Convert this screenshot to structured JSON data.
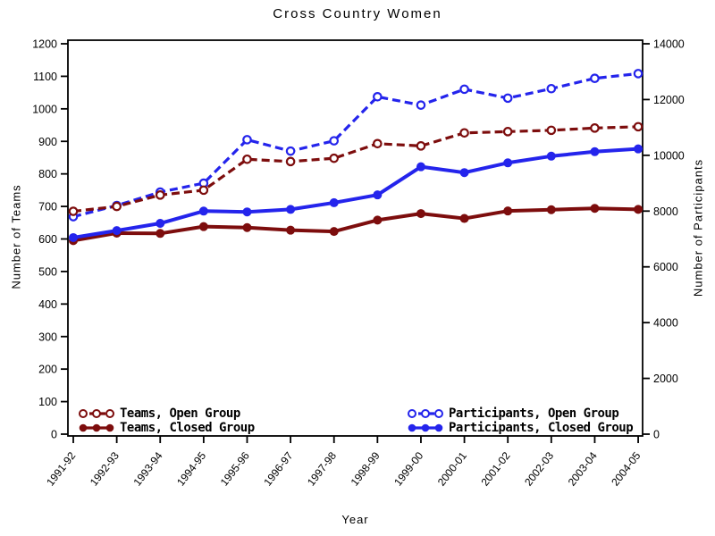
{
  "page": {
    "background": "#ffffff"
  },
  "title": "Cross Country Women",
  "chart_data": {
    "type": "line",
    "title": "Cross Country Women",
    "xlabel": "Year",
    "ylabel_left": "Number of Teams",
    "ylabel_right": "Number of Participants",
    "grid": false,
    "legend_position": "inside-bottom",
    "x_categories": [
      "1991-92",
      "1992-93",
      "1993-94",
      "1994-95",
      "1995-96",
      "1996-97",
      "1997-98",
      "1998-99",
      "1999-00",
      "2000-01",
      "2001-02",
      "2002-03",
      "2003-04",
      "2004-05"
    ],
    "left_axis": {
      "label": "Number of Teams",
      "min": 0,
      "max": 1200,
      "step": 100,
      "ticks": [
        "0",
        "100",
        "200",
        "300",
        "400",
        "500",
        "600",
        "700",
        "800",
        "900",
        "1000",
        "1100",
        "1200"
      ]
    },
    "right_axis": {
      "label": "Number of Participants",
      "min": 0,
      "max": 14000,
      "step": 2000,
      "ticks": [
        "0",
        "2000",
        "4000",
        "6000",
        "8000",
        "10000",
        "12000",
        "14000"
      ]
    },
    "series": [
      {
        "name": "Teams, Open Group",
        "axis": "left",
        "color": "#7D0D0D",
        "line_style": "dashed",
        "marker": "open-circle",
        "values": [
          685,
          700,
          735,
          750,
          845,
          838,
          848,
          893,
          886,
          926,
          930,
          934,
          941,
          945
        ]
      },
      {
        "name": "Teams, Closed Group",
        "axis": "left",
        "color": "#7D0D0D",
        "line_style": "solid",
        "marker": "filled-circle",
        "values": [
          595,
          618,
          617,
          638,
          635,
          627,
          623,
          658,
          678,
          663,
          686,
          690,
          694,
          691
        ]
      },
      {
        "name": "Participants, Open Group",
        "axis": "right",
        "color": "#2424EC",
        "line_style": "dashed",
        "marker": "open-circle",
        "values": [
          7800,
          8200,
          8680,
          9000,
          10560,
          10150,
          10520,
          12100,
          11800,
          12370,
          12050,
          12390,
          12760,
          12930
        ]
      },
      {
        "name": "Participants, Closed Group",
        "axis": "right",
        "color": "#2424EC",
        "line_style": "solid",
        "marker": "filled-circle",
        "values": [
          7050,
          7300,
          7560,
          8000,
          7970,
          8060,
          8300,
          8580,
          9590,
          9380,
          9730,
          9970,
          10130,
          10230
        ]
      }
    ]
  },
  "legend": {
    "left": [
      {
        "label": "Teams, Open Group"
      },
      {
        "label": "Teams, Closed Group"
      }
    ],
    "right": [
      {
        "label": "Participants, Open Group"
      },
      {
        "label": "Participants, Closed Group"
      }
    ]
  }
}
